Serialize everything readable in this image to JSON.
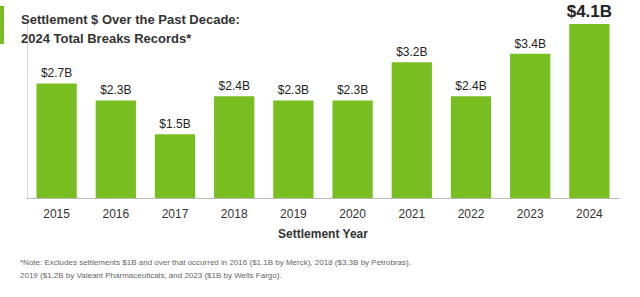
{
  "chart_data": {
    "type": "bar",
    "title": "Settlement $ Over the Past Decade:\n2024 Total Breaks Records*",
    "x_label": "Settlement Year",
    "note": "*Note: Excludes settlements $1B and over that occurred in 2016 ($1.1B by Merck), 2018 ($3.3B by Petrobras),\n2019 ($1.2B by Valeant Pharmaceuticals, and 2023 ($1B by Wells Fargo).",
    "categories": [
      "2015",
      "2016",
      "2017",
      "2018",
      "2019",
      "2020",
      "2021",
      "2022",
      "2023",
      "2024"
    ],
    "values": [
      2.7,
      2.3,
      1.5,
      2.4,
      2.3,
      2.3,
      3.2,
      2.4,
      3.4,
      4.1
    ],
    "value_labels": [
      "$2.7B",
      "$2.3B",
      "$1.5B",
      "$2.4B",
      "$2.3B",
      "$2.3B",
      "$3.2B",
      "$2.4B",
      "$3.4B",
      "$4.1B"
    ],
    "color": "#78be20",
    "ylim": [
      0,
      4.1
    ],
    "yticks": [],
    "grid": false,
    "data_labels": true,
    "tick_labels": "x"
  }
}
